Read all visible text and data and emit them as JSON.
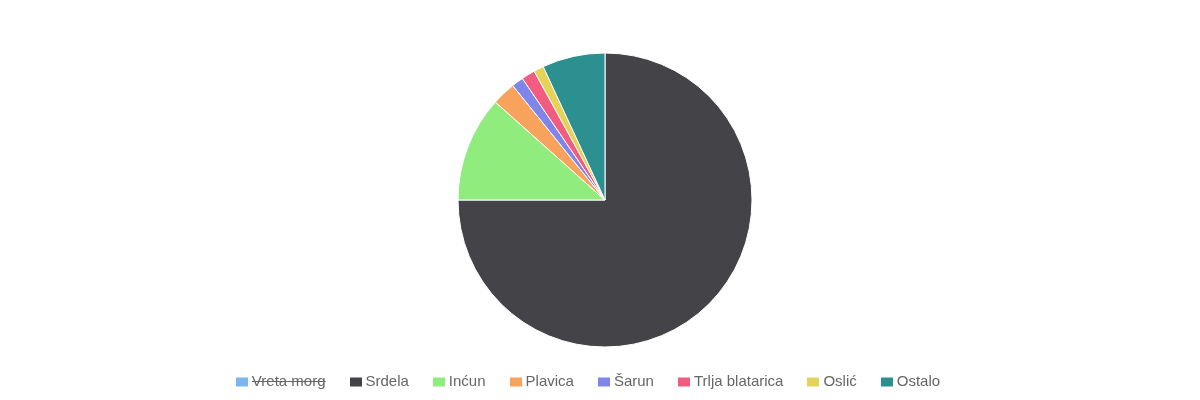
{
  "chart_data": {
    "type": "pie",
    "categories": [
      "Vreta morg",
      "Srdela",
      "Inćun",
      "Plavica",
      "Šarun",
      "Trlja blatarica",
      "Oslić",
      "Ostalo"
    ],
    "values": [
      null,
      75,
      11.6,
      2.6,
      1.3,
      1.5,
      1.1,
      6.9
    ],
    "colors": [
      "#7cb5ec",
      "#434348",
      "#90ed7d",
      "#f7a35c",
      "#8085e9",
      "#f15c80",
      "#e4d354",
      "#2b908f"
    ],
    "legend": "bottom"
  }
}
